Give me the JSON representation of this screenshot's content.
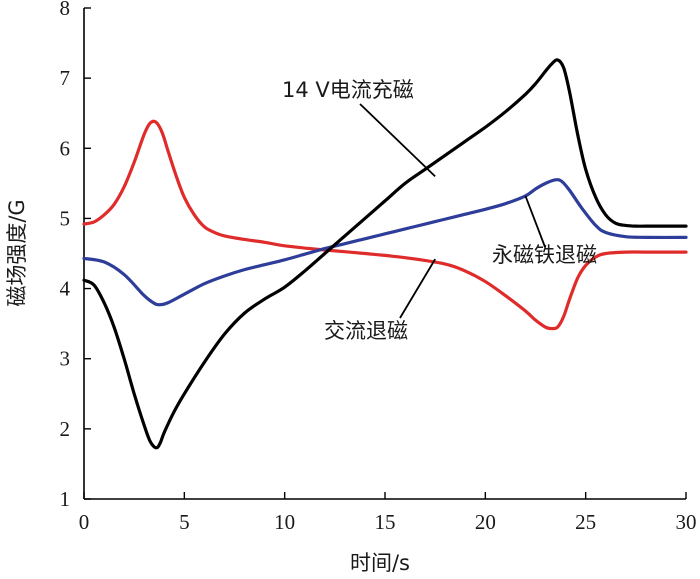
{
  "chart_data": {
    "type": "line",
    "title": "",
    "xlabel": "时间/s",
    "ylabel": "磁场强度/G",
    "xlim": [
      0,
      30
    ],
    "ylim": [
      1,
      8
    ],
    "xticks": [
      0,
      5,
      10,
      15,
      20,
      25,
      30
    ],
    "yticks": [
      1,
      2,
      3,
      4,
      5,
      6,
      7,
      8
    ],
    "grid": false,
    "series": [
      {
        "name": "14 V电流充磁",
        "color": "#000000",
        "x": [
          0,
          0.5,
          1,
          1.5,
          2,
          2.5,
          3,
          3.3,
          3.6,
          3.8,
          4,
          4.5,
          5,
          6,
          7,
          8,
          9,
          10,
          11,
          12,
          13,
          14,
          15,
          16,
          17,
          18,
          19,
          20,
          21,
          22,
          22.5,
          23,
          23.3,
          23.6,
          23.9,
          24.2,
          24.6,
          25,
          25.5,
          26,
          26.5,
          27,
          27.5,
          28,
          29,
          30
        ],
        "values": [
          4.12,
          4.05,
          3.8,
          3.45,
          3.0,
          2.5,
          2.05,
          1.82,
          1.73,
          1.8,
          1.95,
          2.25,
          2.5,
          2.95,
          3.35,
          3.65,
          3.85,
          4.02,
          4.25,
          4.5,
          4.75,
          5.0,
          5.25,
          5.5,
          5.7,
          5.9,
          6.1,
          6.3,
          6.52,
          6.77,
          6.92,
          7.1,
          7.2,
          7.26,
          7.15,
          6.8,
          6.2,
          5.7,
          5.3,
          5.05,
          4.93,
          4.9,
          4.89,
          4.89,
          4.89,
          4.89
        ]
      },
      {
        "name": "永磁铁退磁",
        "color": "#2e3d9a",
        "x": [
          0,
          1,
          2,
          3,
          3.5,
          3.8,
          4.2,
          5,
          6,
          7,
          8,
          9,
          10,
          11,
          12,
          13,
          14,
          15,
          16,
          17,
          18,
          19,
          20,
          21,
          22,
          22.5,
          23,
          23.5,
          23.8,
          24.2,
          24.8,
          25.5,
          26,
          27,
          28,
          30
        ],
        "values": [
          4.43,
          4.38,
          4.2,
          3.9,
          3.79,
          3.77,
          3.8,
          3.92,
          4.07,
          4.18,
          4.27,
          4.34,
          4.41,
          4.49,
          4.57,
          4.64,
          4.71,
          4.78,
          4.85,
          4.92,
          4.99,
          5.06,
          5.13,
          5.21,
          5.32,
          5.42,
          5.5,
          5.55,
          5.53,
          5.4,
          5.15,
          4.9,
          4.8,
          4.74,
          4.73,
          4.73
        ]
      },
      {
        "name": "交流退磁",
        "color": "#e02b2b",
        "x": [
          0,
          0.5,
          1,
          1.5,
          2,
          2.5,
          3,
          3.3,
          3.6,
          3.9,
          4.2,
          4.6,
          5,
          5.5,
          6,
          6.5,
          7,
          8,
          9,
          10,
          12,
          14,
          16,
          18,
          19,
          20,
          21,
          22,
          22.5,
          23,
          23.3,
          23.6,
          23.9,
          24.2,
          24.6,
          25,
          25.5,
          26,
          27,
          28,
          30
        ],
        "values": [
          4.92,
          4.95,
          5.05,
          5.2,
          5.45,
          5.8,
          6.2,
          6.36,
          6.37,
          6.22,
          5.95,
          5.6,
          5.3,
          5.05,
          4.88,
          4.8,
          4.75,
          4.7,
          4.66,
          4.61,
          4.55,
          4.5,
          4.44,
          4.35,
          4.25,
          4.1,
          3.9,
          3.68,
          3.55,
          3.45,
          3.43,
          3.45,
          3.6,
          3.85,
          4.15,
          4.33,
          4.45,
          4.5,
          4.52,
          4.52,
          4.52
        ]
      }
    ],
    "annotations": [
      {
        "text": "14 V电流充磁",
        "series": "14 V电流充磁",
        "x": 17.5,
        "y": 5.6
      },
      {
        "text": "永磁铁退磁",
        "series": "永磁铁退磁",
        "x": 22,
        "y": 5.32
      },
      {
        "text": "交流退磁",
        "series": "交流退磁",
        "x": 17.5,
        "y": 4.42
      }
    ]
  }
}
